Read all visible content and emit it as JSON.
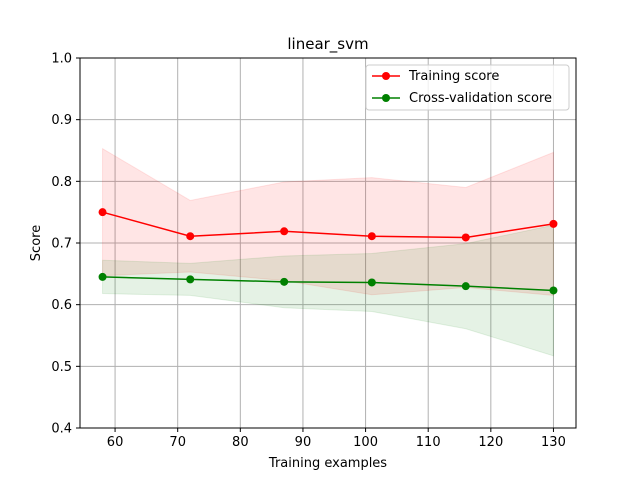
{
  "chart_data": {
    "type": "line",
    "title": "linear_svm",
    "xlabel": "Training examples",
    "ylabel": "Score",
    "xlim": [
      54.4,
      133.6
    ],
    "ylim": [
      0.4,
      1.0
    ],
    "xticks": [
      60,
      70,
      80,
      90,
      100,
      110,
      120,
      130
    ],
    "yticks": [
      0.4,
      0.5,
      0.6,
      0.7,
      0.8,
      0.9,
      1.0
    ],
    "grid": true,
    "legend_position": "top-right",
    "x": [
      58,
      72,
      87,
      101,
      116,
      130
    ],
    "series": [
      {
        "name": "Training score",
        "color": "#ff0000",
        "values": [
          0.75,
          0.711,
          0.719,
          0.711,
          0.709,
          0.731
        ],
        "band_upper": [
          0.853,
          0.769,
          0.799,
          0.806,
          0.79,
          0.847
        ],
        "band_lower": [
          0.647,
          0.653,
          0.639,
          0.616,
          0.628,
          0.615
        ]
      },
      {
        "name": "Cross-validation score",
        "color": "#008000",
        "values": [
          0.645,
          0.641,
          0.637,
          0.636,
          0.63,
          0.623
        ],
        "band_upper": [
          0.672,
          0.667,
          0.679,
          0.683,
          0.699,
          0.729
        ],
        "band_lower": [
          0.618,
          0.615,
          0.595,
          0.589,
          0.561,
          0.517
        ]
      }
    ]
  }
}
